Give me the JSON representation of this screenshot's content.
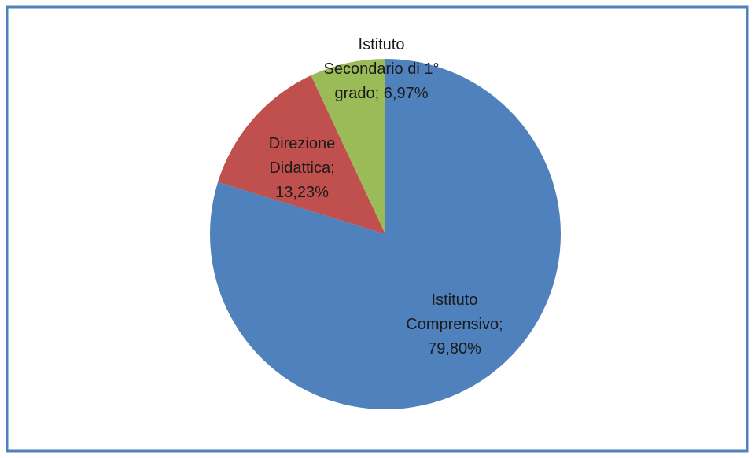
{
  "chart_data": {
    "type": "pie",
    "categories": [
      "Istituto Comprensivo",
      "Direzione Didattica",
      "Istituto Secondario di 1° grado"
    ],
    "values": [
      79.8,
      13.23,
      6.97
    ],
    "value_labels": [
      "79,80%",
      "13,23%",
      "6,97%"
    ],
    "label_separator": ";",
    "colors": [
      "#4f81bd",
      "#c0504d",
      "#9bbb59"
    ]
  }
}
